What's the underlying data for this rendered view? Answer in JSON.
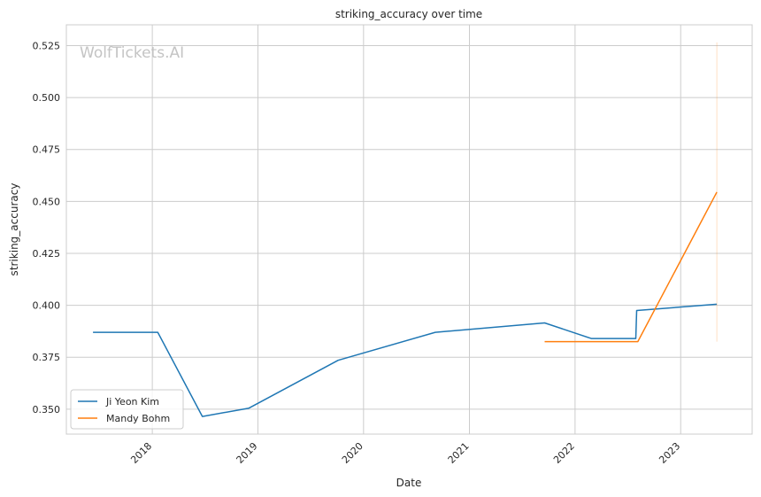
{
  "chart_data": {
    "type": "line",
    "title": "striking_accuracy over time",
    "xlabel": "Date",
    "ylabel": "striking_accuracy",
    "watermark": "WolfTickets.AI",
    "xlim": [
      "2017-03-10",
      "2023-09-05"
    ],
    "ylim": [
      0.338,
      0.535
    ],
    "x_ticks": [
      "2018",
      "2019",
      "2020",
      "2021",
      "2022",
      "2023"
    ],
    "y_ticks": [
      "0.350",
      "0.375",
      "0.400",
      "0.425",
      "0.450",
      "0.475",
      "0.500",
      "0.525"
    ],
    "grid": true,
    "legend_position": "lower-left",
    "series": [
      {
        "name": "Ji Yeon Kim",
        "color": "#1f77b4",
        "points": [
          [
            "2017-06-10",
            0.387
          ],
          [
            "2018-01-20",
            0.387
          ],
          [
            "2018-06-23",
            0.3465
          ],
          [
            "2018-12-01",
            0.3505
          ],
          [
            "2019-10-05",
            0.3735
          ],
          [
            "2020-09-05",
            0.387
          ],
          [
            "2021-09-18",
            0.3915
          ],
          [
            "2022-02-26",
            0.384
          ],
          [
            "2022-07-30",
            0.384
          ],
          [
            "2022-08-02",
            0.3975
          ],
          [
            "2023-05-06",
            0.4005
          ]
        ]
      },
      {
        "name": "Mandy Bohm",
        "color": "#ff7f0e",
        "points": [
          [
            "2021-09-18",
            0.3825
          ],
          [
            "2022-08-06",
            0.3825
          ],
          [
            "2023-05-06",
            0.4545
          ]
        ],
        "error_bar": {
          "x": "2023-05-06",
          "low": 0.3825,
          "high": 0.5265
        }
      }
    ]
  }
}
